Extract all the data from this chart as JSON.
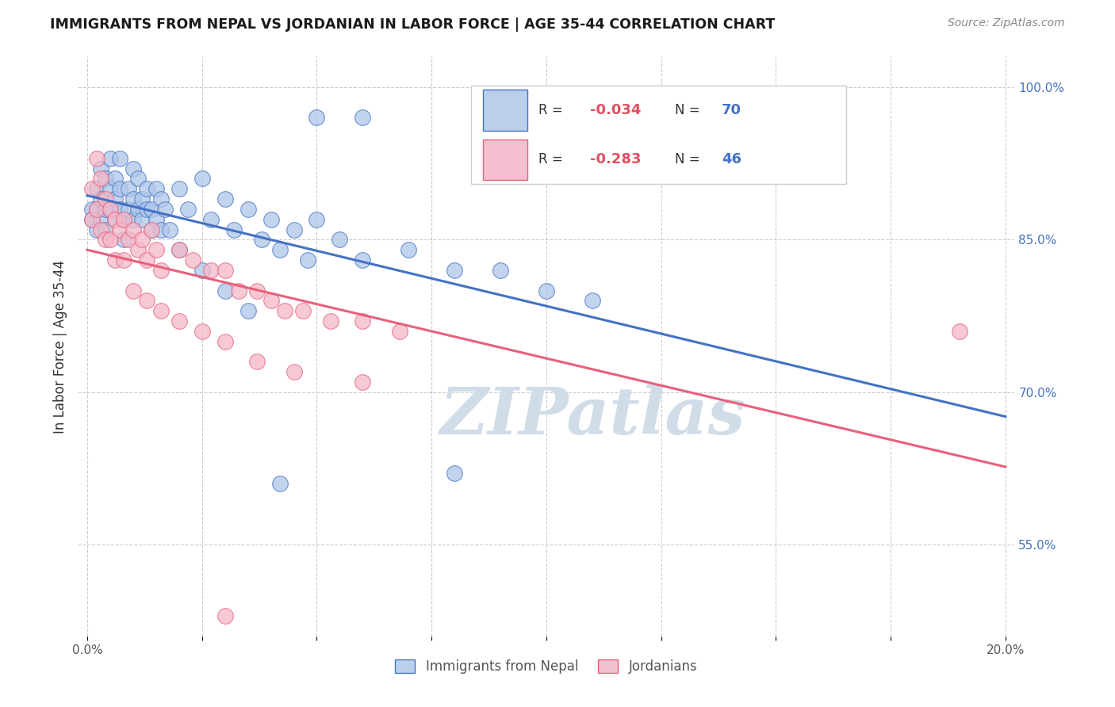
{
  "title": "IMMIGRANTS FROM NEPAL VS JORDANIAN IN LABOR FORCE | AGE 35-44 CORRELATION CHART",
  "source": "Source: ZipAtlas.com",
  "ylabel": "In Labor Force | Age 35-44",
  "right_yticks": [
    "100.0%",
    "85.0%",
    "70.0%",
    "55.0%"
  ],
  "right_ytick_vals": [
    1.0,
    0.85,
    0.7,
    0.55
  ],
  "xlim": [
    -0.002,
    0.202
  ],
  "ylim": [
    0.46,
    1.03
  ],
  "nepal_color": "#aec6e8",
  "jordan_color": "#f4b8c8",
  "nepal_line_color": "#4472c4",
  "jordan_line_color": "#e8607a",
  "nepal_legend_color": "#bad0ea",
  "jordan_legend_color": "#f4c0d0",
  "background_color": "#ffffff",
  "grid_color": "#cccccc",
  "watermark": "ZIPatlas",
  "watermark_color": "#d0dce8"
}
